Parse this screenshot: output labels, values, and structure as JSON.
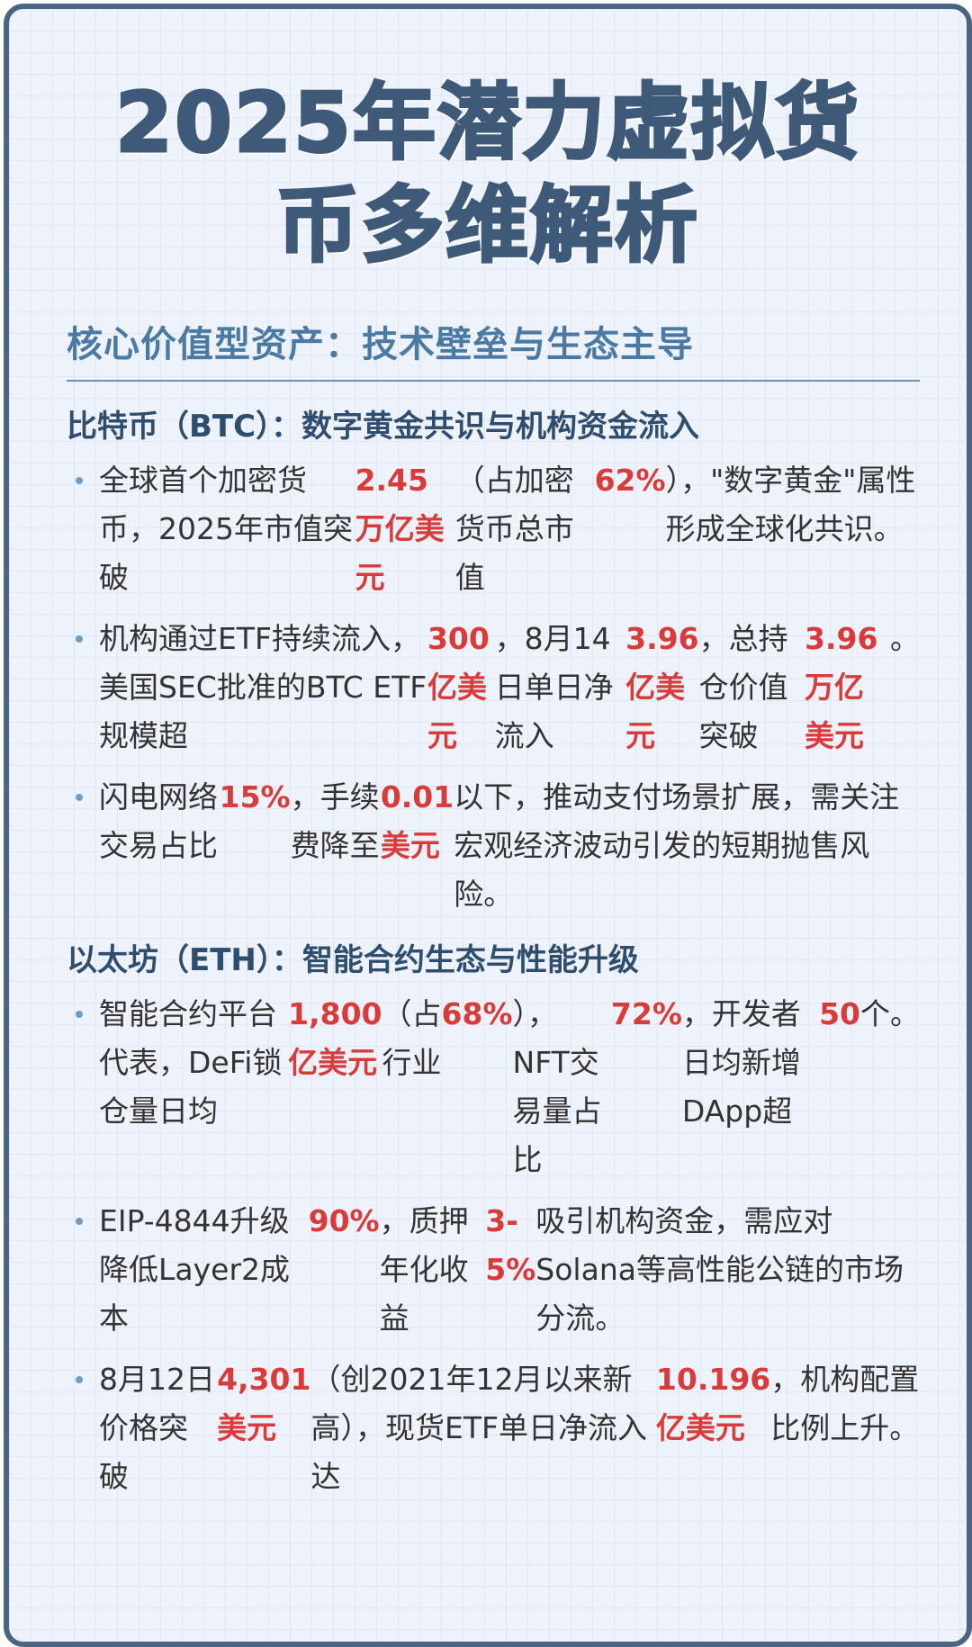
{
  "title_lines": [
    "2025年潜力虚拟货",
    "币多维解析"
  ],
  "section": {
    "heading": "核心价值型资产：技术壁垒与生态主导",
    "groups": [
      {
        "heading": "比特币（BTC）：数字黄金共识与机构资金流入",
        "items": [
          [
            "全球首个加密货币，2025年市值突破",
            "2.45万亿美元",
            "（占加密货币总市值",
            "62%",
            "），\"数字黄金\"属性形成全球化共识。"
          ],
          [
            "机构通过ETF持续流入，美国SEC批准的BTC ETF规模超",
            "300亿美元",
            "，8月14日单日净流入",
            "3.96亿美元",
            "，总持仓价值突破",
            "3.96万亿美元",
            "。"
          ],
          [
            "闪电网络交易占比",
            "15%",
            "，手续费降至",
            "0.01美元",
            "以下，推动支付场景扩展，需关注宏观经济波动引发的短期抛售风险。"
          ]
        ]
      },
      {
        "heading": "以太坊（ETH）：智能合约生态与性能升级",
        "items": [
          [
            "智能合约平台代表，DeFi锁仓量日均",
            "1,800亿美元",
            "（占行业",
            "68%",
            "），NFT交易量占比",
            "72%",
            "，开发者日均新增DApp超",
            "50",
            "个。"
          ],
          [
            "EIP-4844升级降低Layer2成本",
            "90%",
            "，质押年化收益",
            "3-5%",
            "吸引机构资金，需应对Solana等高性能公链的市场分流。"
          ],
          [
            "8月12日价格突破",
            "4,301美元",
            "（创2021年12月以来新高），现货ETF单日净流入达",
            "10.196亿美元",
            "，机构配置比例上升。"
          ]
        ]
      }
    ]
  }
}
